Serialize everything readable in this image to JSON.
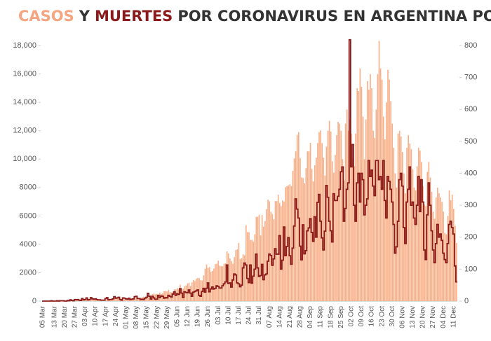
{
  "chart_data": {
    "type": "bar-step",
    "title_parts": [
      {
        "text": "CASOS",
        "color": "#f4a582"
      },
      {
        "text": "Y",
        "color": "#333333"
      },
      {
        "text": "MUERTES",
        "color": "#8b1a1a"
      },
      {
        "text": "POR CORONAVIRUS EN ARGENTINA POR DÍA",
        "color": "#333333"
      }
    ],
    "categories": [
      "05 Mar",
      null,
      null,
      null,
      null,
      null,
      null,
      null,
      "13 Mar",
      null,
      null,
      null,
      null,
      null,
      null,
      "20 Mar",
      null,
      null,
      null,
      null,
      null,
      null,
      "27 Mar",
      null,
      null,
      null,
      null,
      null,
      null,
      "03 Apr",
      null,
      null,
      null,
      null,
      null,
      null,
      "10 Apr",
      null,
      null,
      null,
      null,
      null,
      null,
      "17 Apr",
      null,
      null,
      null,
      null,
      null,
      null,
      "24 Apr",
      null,
      null,
      null,
      null,
      null,
      null,
      "01 May",
      null,
      null,
      null,
      null,
      null,
      null,
      "08 May",
      null,
      null,
      null,
      null,
      null,
      null,
      "15 May",
      null,
      null,
      null,
      null,
      null,
      null,
      "22 May",
      null,
      null,
      null,
      null,
      null,
      null,
      "29 May",
      null,
      null,
      null,
      null,
      null,
      null,
      "05 Jun",
      null,
      null,
      null,
      null,
      null,
      null,
      "12 Jun",
      null,
      null,
      null,
      null,
      null,
      null,
      "19 Jun",
      null,
      null,
      null,
      null,
      null,
      null,
      "26 Jun",
      null,
      null,
      null,
      null,
      null,
      null,
      "03 Jul",
      null,
      null,
      null,
      null,
      null,
      null,
      "10 Jul",
      null,
      null,
      null,
      null,
      null,
      null,
      "17 Jul",
      null,
      null,
      null,
      null,
      null,
      null,
      "24 Jul",
      null,
      null,
      null,
      null,
      null,
      null,
      "31 Jul",
      null,
      null,
      null,
      null,
      null,
      null,
      "07 Aug",
      null,
      null,
      null,
      null,
      null,
      null,
      "14 Aug",
      null,
      null,
      null,
      null,
      null,
      null,
      "21 Aug",
      null,
      null,
      null,
      null,
      null,
      null,
      "28 Aug",
      null,
      null,
      null,
      null,
      null,
      null,
      "04 Sep",
      null,
      null,
      null,
      null,
      null,
      null,
      "11 Sep",
      null,
      null,
      null,
      null,
      null,
      null,
      "18 Sep",
      null,
      null,
      null,
      null,
      null,
      null,
      "25 Sep",
      null,
      null,
      null,
      null,
      null,
      null,
      "02 Oct",
      null,
      null,
      null,
      null,
      null,
      null,
      "09 Oct",
      null,
      null,
      null,
      null,
      null,
      null,
      "16 Oct",
      null,
      null,
      null,
      null,
      null,
      null,
      "23 Oct",
      null,
      null,
      null,
      null,
      null,
      null,
      "30 Oct",
      null,
      null,
      null,
      null,
      null,
      null,
      "06 Nov",
      null,
      null,
      null,
      null,
      null,
      null,
      "13 Nov",
      null,
      null,
      null,
      null,
      null,
      null,
      "20 Nov",
      null,
      null,
      null,
      null,
      null,
      null,
      "27 Nov",
      null,
      null,
      null,
      null,
      null,
      null,
      "04 Dec",
      null,
      null,
      null,
      null,
      null,
      null,
      "11 Dec",
      null,
      null
    ],
    "series": [
      {
        "name": "CASOS",
        "color": "#f9b089",
        "axis": "y",
        "values": [
          1,
          0,
          2,
          3,
          4,
          5,
          2,
          12,
          3,
          11,
          14,
          0,
          23,
          31,
          11,
          30,
          31,
          67,
          35,
          41,
          35,
          20,
          60,
          87,
          101,
          55,
          75,
          146,
          104,
          167,
          83,
          76,
          114,
          88,
          83,
          102,
          97,
          104,
          113,
          128,
          89,
          75,
          78,
          143,
          111,
          93,
          116,
          119,
          97,
          197,
          181,
          177,
          174,
          173,
          124,
          114,
          136,
          124,
          135,
          145,
          124,
          163,
          170,
          242,
          307,
          245,
          159,
          228,
          285,
          316,
          262,
          308,
          430,
          271,
          381,
          491,
          527,
          476,
          504,
          479,
          609,
          500,
          565,
          698,
          712,
          681,
          795,
          636,
          614,
          601,
          827,
          820,
          921,
          831,
          1165,
          813,
          879,
          1034,
          1105,
          1241,
          1302,
          1054,
          1317,
          1481,
          1413,
          1576,
          1635,
          1612,
          1469,
          1449,
          1812,
          2286,
          2580,
          2339,
          2399,
          2069,
          2124,
          2299,
          2605,
          2630,
          2846,
          2490,
          2457,
          2457,
          2629,
          2659,
          3496,
          3361,
          3005,
          2813,
          2632,
          3099,
          3604,
          3645,
          4098,
          2965,
          3023,
          3300,
          3223,
          5346,
          4864,
          4854,
          4299,
          4325,
          4190,
          4707,
          5932,
          5944,
          6088,
          4622,
          6069,
          5241,
          5640,
          6477,
          7147,
          7036,
          6292,
          6134,
          5762,
          7045,
          7046,
          7498,
          6920,
          6695,
          7098,
          7020,
          8023,
          8105,
          8159,
          8225,
          8100,
          9176,
          10054,
          10550,
          11717,
          11905,
          10078,
          8713,
          8671,
          8302,
          9363,
          10549,
          10550,
          11148,
          9309,
          8431,
          9569,
          10103,
          11138,
          11901,
          12026,
          11129,
          10104,
          8841,
          10888,
          11998,
          12701,
          11954,
          9856,
          9045,
          10300,
          11690,
          12625,
          12500,
          12000,
          10000,
          8500,
          12500,
          13500,
          12000,
          12800,
          11800,
          10000,
          9500,
          11800,
          15000,
          14800,
          16400,
          15100,
          13000,
          10000,
          12800,
          15500,
          14900,
          16000,
          15000,
          12000,
          11500,
          13500,
          16000,
          18326,
          16400,
          15600,
          13000,
          11400,
          14000,
          16300,
          15600,
          14100,
          12500,
          10800,
          9000,
          8000,
          11800,
          12000,
          11600,
          10500,
          9000,
          7600,
          10800,
          11700,
          11100,
          10700,
          9300,
          8000,
          7800,
          9500,
          10800,
          10600,
          9800,
          8100,
          6800,
          6700,
          9100,
          9800,
          8700,
          7700,
          6300,
          5800,
          7300,
          8000,
          7600,
          7300,
          7000,
          6300,
          4800,
          4700,
          6000,
          7800,
          7100,
          7500,
          6500,
          5300,
          4100
        ]
      },
      {
        "name": "MUERTES",
        "color": "#8b1a1a",
        "axis": "y2",
        "values": [
          0,
          0,
          0,
          0,
          0,
          0,
          1,
          0,
          0,
          0,
          1,
          0,
          1,
          1,
          1,
          0,
          0,
          2,
          1,
          4,
          2,
          1,
          5,
          4,
          5,
          3,
          2,
          8,
          4,
          5,
          10,
          4,
          5,
          11,
          7,
          6,
          7,
          5,
          4,
          4,
          3,
          3,
          3,
          8,
          11,
          4,
          5,
          5,
          7,
          14,
          9,
          10,
          12,
          5,
          3,
          10,
          9,
          7,
          6,
          9,
          5,
          6,
          7,
          14,
          15,
          8,
          8,
          5,
          6,
          5,
          9,
          12,
          24,
          15,
          6,
          15,
          10,
          6,
          6,
          18,
          11,
          16,
          15,
          9,
          11,
          10,
          18,
          15,
          13,
          22,
          29,
          18,
          23,
          21,
          39,
          25,
          11,
          29,
          27,
          26,
          35,
          25,
          15,
          28,
          30,
          32,
          35,
          18,
          15,
          30,
          40,
          28,
          40,
          57,
          29,
          38,
          44,
          38,
          40,
          48,
          46,
          41,
          41,
          48,
          54,
          60,
          113,
          55,
          57,
          44,
          66,
          85,
          82,
          57,
          54,
          45,
          50,
          104,
          119,
          113,
          71,
          58,
          113,
          56,
          78,
          100,
          147,
          104,
          77,
          80,
          115,
          67,
          82,
          85,
          125,
          147,
          143,
          112,
          132,
          164,
          147,
          147,
          205,
          100,
          128,
          232,
          142,
          171,
          199,
          142,
          115,
          166,
          235,
          320,
          288,
          260,
          172,
          129,
          239,
          148,
          158,
          220,
          229,
          258,
          215,
          187,
          264,
          200,
          309,
          334,
          250,
          198,
          160,
          219,
          362,
          325,
          250,
          220,
          185,
          336,
          315,
          315,
          328,
          350,
          405,
          420,
          250,
          290,
          350,
          370,
          818,
          420,
          490,
          300,
          250,
          370,
          400,
          310,
          400,
          380,
          270,
          300,
          320,
          440,
          390,
          410,
          360,
          330,
          440,
          440,
          380,
          390,
          350,
          440,
          315,
          260,
          390,
          375,
          350,
          310,
          240,
          150,
          170,
          250,
          380,
          400,
          360,
          230,
          180,
          310,
          350,
          420,
          300,
          310,
          260,
          240,
          300,
          390,
          280,
          380,
          310,
          160,
          130,
          270,
          370,
          300,
          220,
          160,
          120,
          180,
          240,
          200,
          210,
          190,
          150,
          130,
          120,
          180,
          240,
          250,
          230,
          210,
          110,
          60
        ]
      }
    ],
    "ylim": [
      0,
      18500
    ],
    "yticks": [
      0,
      2000,
      4000,
      6000,
      8000,
      {
        "value": 10000,
        "label": "10,000"
      },
      {
        "value": 12000,
        "label": "12,000"
      },
      {
        "value": 14000,
        "label": "14,000"
      },
      {
        "value": 16000,
        "label": "16,000"
      },
      {
        "value": 18000,
        "label": "18,000"
      }
    ],
    "y2lim": [
      0,
      822
    ],
    "y2ticks": [
      0,
      100,
      200,
      300,
      400,
      500,
      600,
      700,
      800
    ],
    "grid": false
  }
}
